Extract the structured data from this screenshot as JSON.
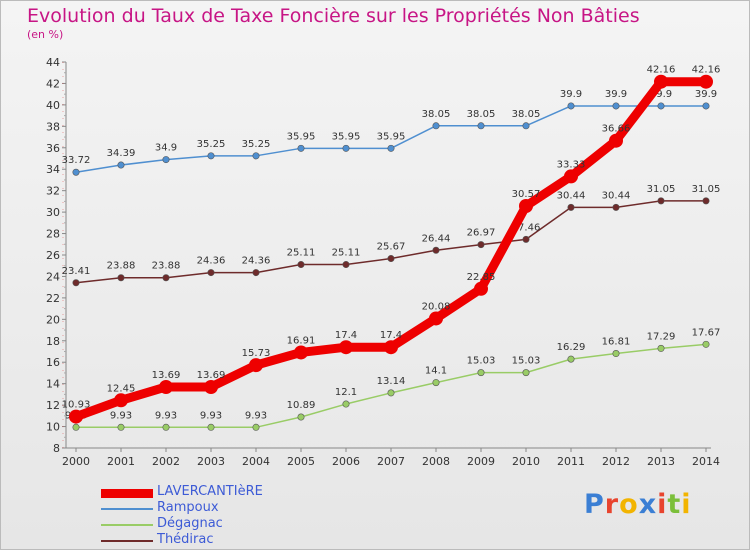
{
  "chart_data": {
    "type": "line",
    "title": "Evolution du Taux de Taxe Foncière sur les Propriétés Non Bâties",
    "unit_label": "(en %)",
    "x": [
      "2000",
      "2001",
      "2002",
      "2003",
      "2004",
      "2005",
      "2006",
      "2007",
      "2008",
      "2009",
      "2010",
      "2011",
      "2012",
      "2013",
      "2014"
    ],
    "ylim": [
      8,
      44
    ],
    "yticks": [
      8,
      10,
      12,
      14,
      16,
      18,
      20,
      22,
      24,
      26,
      28,
      30,
      32,
      34,
      36,
      38,
      40,
      42,
      44
    ],
    "grid": false,
    "legend_position": "bottom-left",
    "series": [
      {
        "name": "LAVERCANTIèRE",
        "color": "#ee0000",
        "values": [
          10.93,
          12.45,
          13.69,
          13.69,
          15.73,
          16.91,
          17.4,
          17.4,
          20.08,
          22.85,
          30.57,
          33.33,
          36.66,
          42.16,
          42.16
        ],
        "labels": [
          "10.93",
          "12.45",
          "13.69",
          "13.69",
          "15.73",
          "16.91",
          "17.4",
          "17.4",
          "20.08",
          "22.85",
          "30.57",
          "33.33",
          "36.66",
          "42.16",
          "42.16"
        ]
      },
      {
        "name": "Rampoux",
        "color": "#4f8fd0",
        "values": [
          33.72,
          34.39,
          34.9,
          35.25,
          35.25,
          35.95,
          35.95,
          35.95,
          38.05,
          38.05,
          38.05,
          39.9,
          39.9,
          39.9,
          39.9
        ],
        "labels": [
          "33.72",
          "34.39",
          "34.9",
          "35.25",
          "35.25",
          "35.95",
          "35.95",
          "35.95",
          "38.05",
          "38.05",
          "38.05",
          "39.9",
          "39.9",
          "39.9",
          "39.9"
        ]
      },
      {
        "name": "Dégagnac",
        "color": "#99cc66",
        "values": [
          9.93,
          9.93,
          9.93,
          9.93,
          9.93,
          10.89,
          12.1,
          13.14,
          14.1,
          15.03,
          15.03,
          16.29,
          16.81,
          17.29,
          17.67
        ],
        "labels": [
          "9.93",
          "9.93",
          "9.93",
          "9.93",
          "9.93",
          "10.89",
          "12.1",
          "13.14",
          "14.1",
          "15.03",
          "15.03",
          "16.29",
          "16.81",
          "17.29",
          "17.67"
        ]
      },
      {
        "name": "Thédirac",
        "color": "#6e2b2b",
        "values": [
          23.41,
          23.88,
          23.88,
          24.36,
          24.36,
          25.11,
          25.11,
          25.67,
          26.44,
          26.97,
          27.46,
          30.44,
          30.44,
          31.05,
          31.05
        ],
        "labels": [
          "23.41",
          "23.88",
          "23.88",
          "24.36",
          "24.36",
          "25.11",
          "25.11",
          "25.67",
          "26.44",
          "26.97",
          "27.46",
          "30.44",
          "30.44",
          "31.05",
          "31.05"
        ]
      }
    ]
  },
  "logo": {
    "text": "Proxiti",
    "colors": [
      "#3b7fd4",
      "#e8442e",
      "#f2b400",
      "#3b7fd4",
      "#e8442e",
      "#7bbf3a",
      "#f2b400"
    ]
  }
}
